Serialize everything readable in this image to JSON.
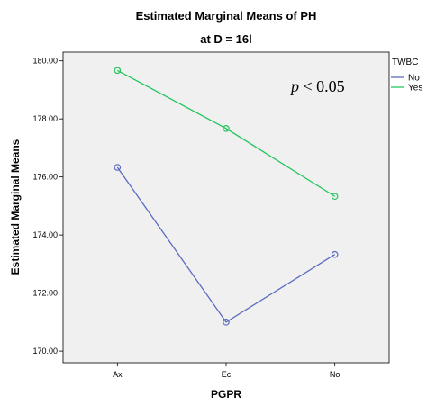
{
  "chart_data": {
    "type": "line",
    "title": "Estimated Marginal Means of PH",
    "subtitle": "at D = 16l",
    "xlabel": "PGPR",
    "ylabel": "Estimated Marginal Means",
    "categories": [
      "Ax",
      "Ec",
      "No"
    ],
    "ylim": [
      169.6,
      180.3
    ],
    "yticks": [
      170,
      172,
      174,
      176,
      178,
      180
    ],
    "ytick_labels": [
      "170.00",
      "172.00",
      "174.00",
      "176.00",
      "178.00",
      "180.00"
    ],
    "grid": false,
    "background_color": "#f0f0f0",
    "annotation": {
      "italic": "p",
      "rest": " < 0.05"
    },
    "legend": {
      "title": "TWBC",
      "placement": "right"
    },
    "series": [
      {
        "name": "No",
        "color": "#5b6bc0",
        "values": [
          176.33,
          171.0,
          173.33
        ]
      },
      {
        "name": "Yes",
        "color": "#22c55e",
        "values": [
          179.67,
          177.67,
          175.33
        ]
      }
    ]
  }
}
